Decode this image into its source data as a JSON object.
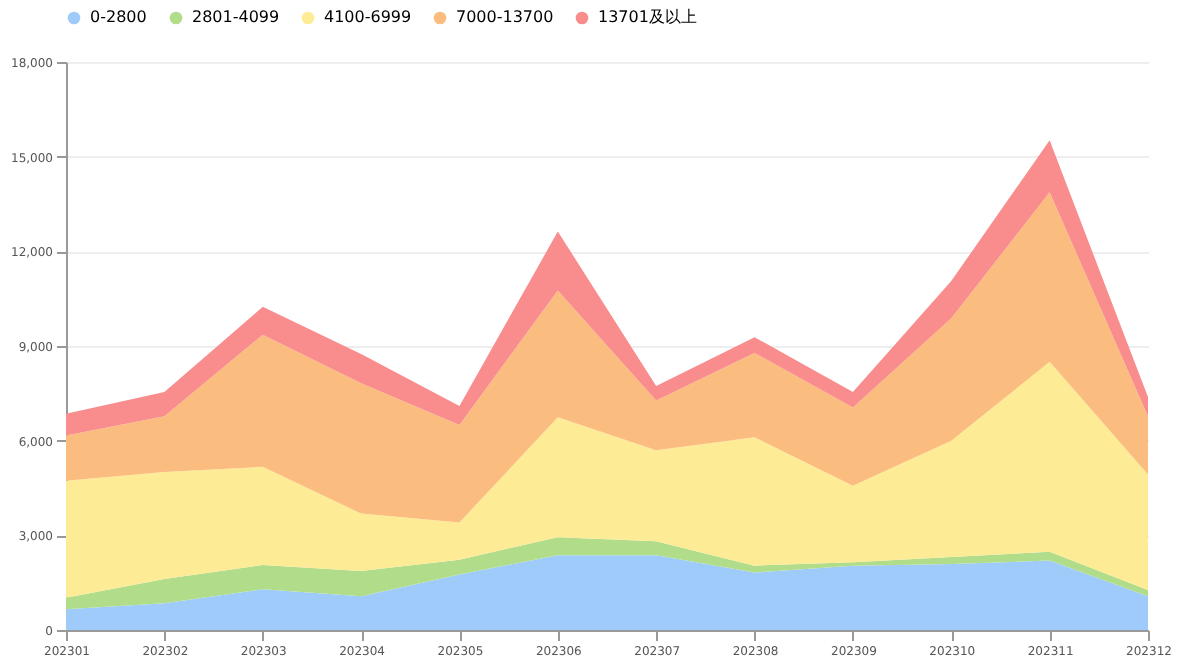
{
  "chart_data": {
    "type": "area",
    "stacked": true,
    "categories": [
      "202301",
      "202302",
      "202303",
      "202304",
      "202305",
      "202306",
      "202307",
      "202308",
      "202309",
      "202310",
      "202311",
      "202312"
    ],
    "series": [
      {
        "name": "0-2800",
        "color": "#9fcbfb",
        "values": [
          660,
          850,
          1290,
          1070,
          1760,
          2370,
          2370,
          1820,
          2040,
          2090,
          2200,
          1070
        ]
      },
      {
        "name": "2801-4099",
        "color": "#b1dd8b",
        "values": [
          360,
          770,
          770,
          800,
          470,
          570,
          440,
          220,
          110,
          220,
          280,
          200
        ]
      },
      {
        "name": "4100-6999",
        "color": "#fdeb96",
        "values": [
          3710,
          3390,
          3110,
          1820,
          1180,
          3800,
          2890,
          4070,
          2420,
          3690,
          6020,
          3660
        ]
      },
      {
        "name": "7000-13700",
        "color": "#fbbd7f",
        "values": [
          1430,
          1760,
          4190,
          4130,
          3090,
          4020,
          1570,
          2670,
          2480,
          3880,
          5370,
          1840
        ]
      },
      {
        "name": "13701及以上",
        "color": "#f98c8c",
        "values": [
          690,
          770,
          880,
          930,
          600,
          1870,
          460,
          500,
          490,
          1180,
          1650,
          610
        ]
      }
    ],
    "ylim": [
      0,
      18000
    ],
    "yticks": [
      0,
      {
        "value": 3000,
        "label": "3,000"
      },
      {
        "value": 6000,
        "label": "6,000"
      },
      {
        "value": 9000,
        "label": "9,000"
      },
      {
        "value": 12000,
        "label": "12,000"
      },
      {
        "value": 15000,
        "label": "15,000"
      },
      {
        "value": 18000,
        "label": "18,000"
      }
    ],
    "grid": "y",
    "legend": "top",
    "marker": "none"
  }
}
